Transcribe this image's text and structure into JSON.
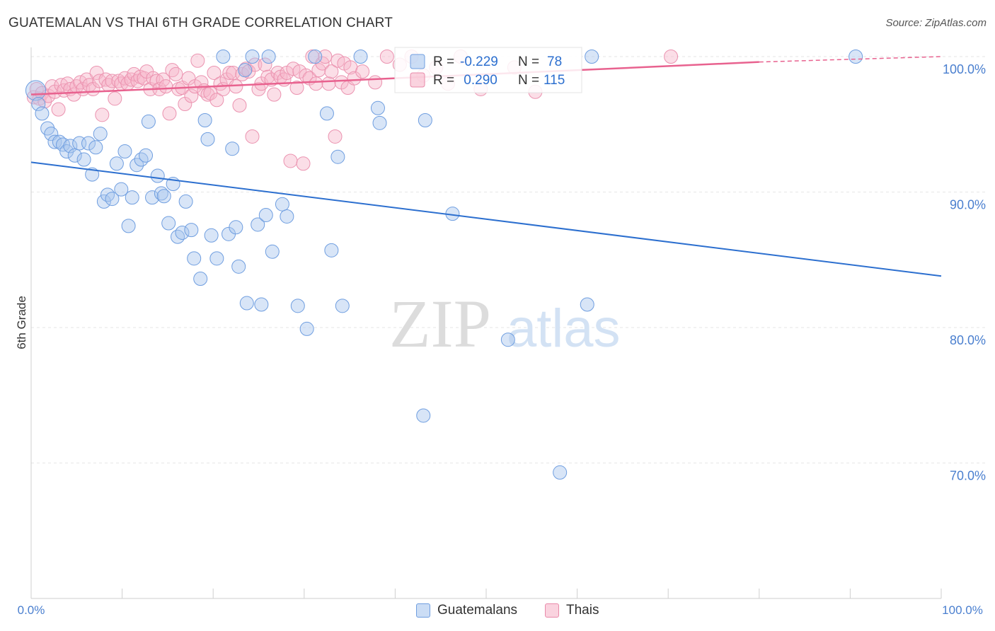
{
  "title": "GUATEMALAN VS THAI 6TH GRADE CORRELATION CHART",
  "source": "Source: ZipAtlas.com",
  "watermark": {
    "zip": "ZIP",
    "atlas": "atlas"
  },
  "colors": {
    "blue": "#2c6fcf",
    "blue_fill": "#a9c6ee",
    "pink": "#e8628f",
    "pink_fill": "#f6b6ca",
    "tick_label": "#4a7fcf"
  },
  "legend_top": {
    "rows": [
      {
        "r_label": "R = ",
        "r_value": "-0.229",
        "n_label": "N = ",
        "n_value": "78"
      },
      {
        "r_label": "R = ",
        "r_value": " 0.290",
        "n_label": "N = ",
        "n_value": "115"
      }
    ]
  },
  "legend_bottom": [
    {
      "label": "Guatemalans"
    },
    {
      "label": "Thais"
    }
  ],
  "chart_data": {
    "type": "scatter",
    "title": "GUATEMALAN VS THAI 6TH GRADE CORRELATION CHART",
    "xlabel": "",
    "ylabel": "6th Grade",
    "xlim": [
      0,
      100
    ],
    "ylim": [
      60,
      101.5
    ],
    "x_tick_labels": [
      "0.0%",
      "100.0%"
    ],
    "y_ticks": [
      70,
      80,
      90,
      100
    ],
    "y_tick_labels": [
      "70.0%",
      "80.0%",
      "90.0%",
      "100.0%"
    ],
    "series": [
      {
        "name": "Guatemalans",
        "r": -0.229,
        "n": 78,
        "trend": {
          "x0": 0,
          "y0": 92.2,
          "x1": 100,
          "y1": 83.8
        },
        "points": [
          [
            0.5,
            97.5
          ],
          [
            0.8,
            96.5
          ],
          [
            1.2,
            95.8
          ],
          [
            1.8,
            94.7
          ],
          [
            2.2,
            94.3
          ],
          [
            2.6,
            93.7
          ],
          [
            3.1,
            93.7
          ],
          [
            3.5,
            93.5
          ],
          [
            3.9,
            93.0
          ],
          [
            4.3,
            93.4
          ],
          [
            4.8,
            92.7
          ],
          [
            5.3,
            93.6
          ],
          [
            5.8,
            92.4
          ],
          [
            6.3,
            93.6
          ],
          [
            6.7,
            91.3
          ],
          [
            7.1,
            93.3
          ],
          [
            7.6,
            94.3
          ],
          [
            8.0,
            89.3
          ],
          [
            8.4,
            89.8
          ],
          [
            8.9,
            89.5
          ],
          [
            9.4,
            92.1
          ],
          [
            9.9,
            90.2
          ],
          [
            10.3,
            93.0
          ],
          [
            10.7,
            87.5
          ],
          [
            11.1,
            89.6
          ],
          [
            11.6,
            92.0
          ],
          [
            12.1,
            92.4
          ],
          [
            12.6,
            92.7
          ],
          [
            12.9,
            95.2
          ],
          [
            13.3,
            89.6
          ],
          [
            13.9,
            91.2
          ],
          [
            14.3,
            89.9
          ],
          [
            14.6,
            89.7
          ],
          [
            15.1,
            87.7
          ],
          [
            15.6,
            90.6
          ],
          [
            16.1,
            86.7
          ],
          [
            16.6,
            87.0
          ],
          [
            17.0,
            89.3
          ],
          [
            17.6,
            87.2
          ],
          [
            17.9,
            85.1
          ],
          [
            18.6,
            83.6
          ],
          [
            19.1,
            95.3
          ],
          [
            19.4,
            93.9
          ],
          [
            19.8,
            86.8
          ],
          [
            20.4,
            85.1
          ],
          [
            21.1,
            100.0
          ],
          [
            21.7,
            86.9
          ],
          [
            22.1,
            93.2
          ],
          [
            22.5,
            87.4
          ],
          [
            22.8,
            84.5
          ],
          [
            23.5,
            99.0
          ],
          [
            23.7,
            81.8
          ],
          [
            24.3,
            100.0
          ],
          [
            24.9,
            87.6
          ],
          [
            25.3,
            81.7
          ],
          [
            25.8,
            88.3
          ],
          [
            26.1,
            100.0
          ],
          [
            26.5,
            85.6
          ],
          [
            27.6,
            89.1
          ],
          [
            28.1,
            88.2
          ],
          [
            29.3,
            81.6
          ],
          [
            30.3,
            79.9
          ],
          [
            31.2,
            100.0
          ],
          [
            32.5,
            95.8
          ],
          [
            33.0,
            85.7
          ],
          [
            33.7,
            92.6
          ],
          [
            34.2,
            81.6
          ],
          [
            36.2,
            100.0
          ],
          [
            38.1,
            96.2
          ],
          [
            38.3,
            95.1
          ],
          [
            43.1,
            73.5
          ],
          [
            43.3,
            95.3
          ],
          [
            46.3,
            88.4
          ],
          [
            52.4,
            79.1
          ],
          [
            58.1,
            69.3
          ],
          [
            61.1,
            81.7
          ],
          [
            61.6,
            100.0
          ],
          [
            90.6,
            100.0
          ]
        ]
      },
      {
        "name": "Thais",
        "r": 0.29,
        "n": 115,
        "trend": {
          "x0": 0,
          "y0": 97.2,
          "x1": 80,
          "y1": 99.6,
          "dash_to_x": 100,
          "dash_to_y": 100.0
        },
        "points": [
          [
            0.3,
            97.0
          ],
          [
            0.6,
            97.6
          ],
          [
            0.9,
            96.9
          ],
          [
            1.2,
            97.3
          ],
          [
            1.5,
            96.7
          ],
          [
            1.9,
            97.1
          ],
          [
            2.3,
            97.8
          ],
          [
            2.6,
            97.4
          ],
          [
            3.0,
            96.1
          ],
          [
            3.3,
            97.9
          ],
          [
            3.6,
            97.5
          ],
          [
            4.0,
            98.0
          ],
          [
            4.3,
            97.6
          ],
          [
            4.7,
            97.2
          ],
          [
            5.0,
            97.8
          ],
          [
            5.4,
            98.1
          ],
          [
            5.7,
            97.6
          ],
          [
            6.1,
            98.3
          ],
          [
            6.4,
            97.9
          ],
          [
            6.8,
            97.6
          ],
          [
            7.2,
            98.8
          ],
          [
            7.5,
            98.2
          ],
          [
            7.8,
            95.7
          ],
          [
            8.2,
            98.3
          ],
          [
            8.5,
            97.9
          ],
          [
            8.9,
            98.2
          ],
          [
            9.2,
            96.9
          ],
          [
            9.6,
            98.2
          ],
          [
            9.9,
            98.0
          ],
          [
            10.3,
            98.4
          ],
          [
            10.6,
            98.0
          ],
          [
            11.0,
            98.3
          ],
          [
            11.3,
            98.7
          ],
          [
            11.7,
            98.2
          ],
          [
            12.0,
            98.5
          ],
          [
            12.4,
            98.4
          ],
          [
            12.7,
            98.9
          ],
          [
            13.1,
            97.6
          ],
          [
            13.4,
            98.4
          ],
          [
            13.8,
            98.2
          ],
          [
            14.1,
            97.6
          ],
          [
            14.5,
            98.3
          ],
          [
            14.8,
            97.8
          ],
          [
            15.2,
            95.8
          ],
          [
            15.5,
            99.0
          ],
          [
            15.9,
            98.7
          ],
          [
            16.2,
            97.6
          ],
          [
            16.6,
            97.7
          ],
          [
            16.9,
            96.5
          ],
          [
            17.3,
            98.4
          ],
          [
            17.6,
            97.1
          ],
          [
            18.0,
            97.8
          ],
          [
            18.3,
            99.7
          ],
          [
            18.7,
            98.1
          ],
          [
            19.0,
            97.5
          ],
          [
            19.4,
            97.2
          ],
          [
            19.7,
            97.3
          ],
          [
            20.1,
            98.8
          ],
          [
            20.4,
            96.8
          ],
          [
            20.8,
            98.0
          ],
          [
            21.1,
            97.6
          ],
          [
            21.5,
            98.3
          ],
          [
            21.8,
            98.8
          ],
          [
            22.2,
            98.8
          ],
          [
            22.5,
            97.8
          ],
          [
            22.9,
            96.4
          ],
          [
            23.2,
            98.7
          ],
          [
            23.6,
            99.1
          ],
          [
            23.9,
            98.9
          ],
          [
            24.3,
            94.1
          ],
          [
            24.6,
            99.4
          ],
          [
            25.0,
            97.6
          ],
          [
            25.3,
            98.0
          ],
          [
            25.7,
            99.4
          ],
          [
            26.0,
            98.5
          ],
          [
            26.4,
            98.3
          ],
          [
            26.7,
            97.2
          ],
          [
            27.1,
            98.8
          ],
          [
            27.4,
            98.5
          ],
          [
            27.8,
            98.3
          ],
          [
            28.1,
            98.8
          ],
          [
            28.5,
            92.3
          ],
          [
            28.8,
            99.1
          ],
          [
            29.2,
            97.7
          ],
          [
            29.5,
            98.9
          ],
          [
            29.9,
            92.1
          ],
          [
            30.2,
            98.6
          ],
          [
            30.6,
            98.4
          ],
          [
            30.9,
            100.0
          ],
          [
            31.3,
            98.0
          ],
          [
            31.6,
            99.0
          ],
          [
            32.0,
            99.5
          ],
          [
            32.3,
            100.0
          ],
          [
            32.7,
            98.0
          ],
          [
            33.0,
            98.9
          ],
          [
            33.4,
            94.1
          ],
          [
            33.7,
            99.7
          ],
          [
            34.1,
            98.1
          ],
          [
            34.4,
            99.5
          ],
          [
            34.8,
            97.7
          ],
          [
            35.1,
            99.2
          ],
          [
            35.5,
            98.4
          ],
          [
            36.4,
            98.9
          ],
          [
            37.8,
            98.1
          ],
          [
            39.1,
            100.0
          ],
          [
            40.5,
            99.4
          ],
          [
            41.8,
            100.0
          ],
          [
            43.1,
            98.6
          ],
          [
            44.5,
            99.2
          ],
          [
            45.8,
            98.0
          ],
          [
            47.2,
            100.0
          ],
          [
            49.4,
            97.6
          ],
          [
            53.1,
            99.2
          ],
          [
            55.4,
            97.4
          ],
          [
            70.3,
            100.0
          ]
        ]
      }
    ]
  }
}
